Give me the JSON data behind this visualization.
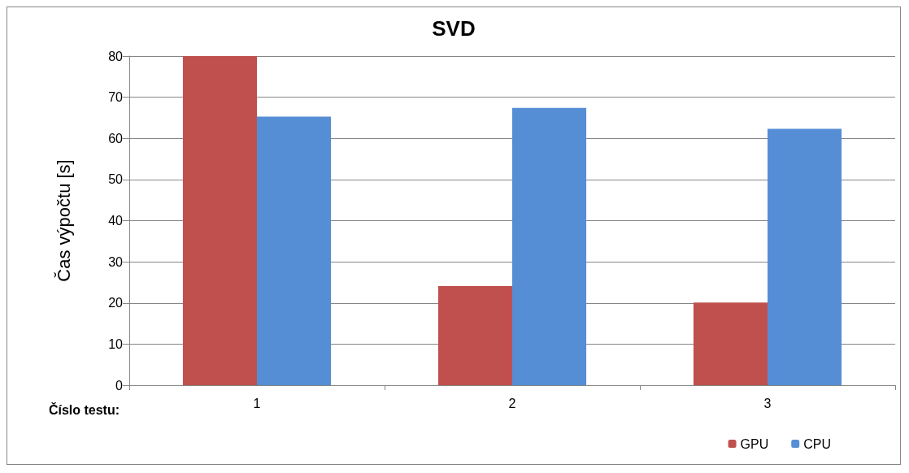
{
  "chart_data": {
    "type": "bar",
    "title": "SVD",
    "xlabel": "Číslo testu:",
    "ylabel": "Čas výpočtu [s]",
    "categories": [
      "1",
      "2",
      "3"
    ],
    "series": [
      {
        "name": "GPU",
        "color": "#c0504d",
        "values": [
          80,
          24.1,
          20.1
        ]
      },
      {
        "name": "CPU",
        "color": "#558ed5",
        "values": [
          65.3,
          67.4,
          62.3
        ]
      }
    ],
    "ylim": [
      0,
      80
    ],
    "yticks": [
      0,
      10,
      20,
      30,
      40,
      50,
      60,
      70,
      80
    ],
    "grid": "y",
    "legend": "bottom right"
  }
}
